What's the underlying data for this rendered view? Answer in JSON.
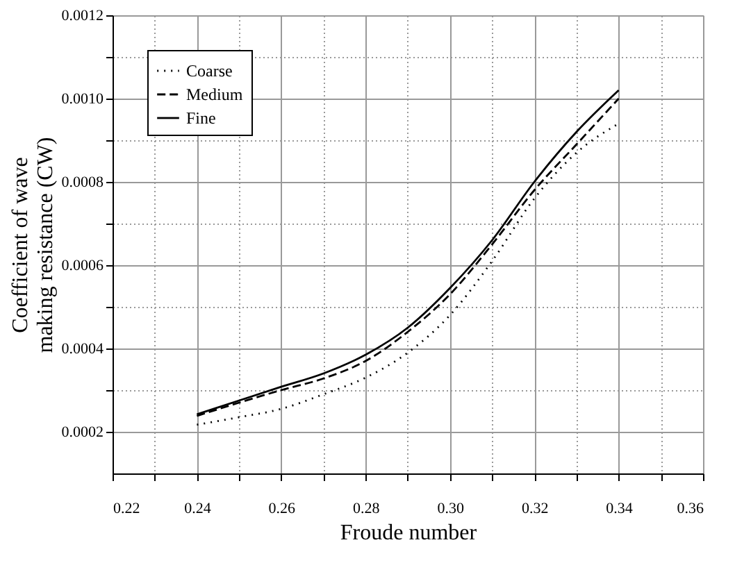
{
  "chart_data": {
    "type": "line",
    "xlabel": "Froude number",
    "ylabel": "Coefficient of wave making resistance (CW)",
    "x": [
      0.24,
      0.25,
      0.26,
      0.27,
      0.28,
      0.29,
      0.3,
      0.31,
      0.32,
      0.33,
      0.34
    ],
    "series": [
      {
        "name": "Coarse",
        "color": "#000000",
        "line_style": "dotted",
        "values": [
          0.000217,
          0.000235,
          0.000255,
          0.00029,
          0.00033,
          0.00039,
          0.00048,
          0.00061,
          0.00076,
          0.00087,
          0.00094
        ]
      },
      {
        "name": "Medium",
        "color": "#000000",
        "line_style": "dashed",
        "values": [
          0.000238,
          0.00027,
          0.0003,
          0.000328,
          0.00037,
          0.00044,
          0.00053,
          0.00065,
          0.00078,
          0.00089,
          0.001
        ]
      },
      {
        "name": "Fine",
        "color": "#000000",
        "line_style": "solid",
        "values": [
          0.000242,
          0.000275,
          0.000308,
          0.00034,
          0.000385,
          0.00045,
          0.000545,
          0.00066,
          0.0008,
          0.00092,
          0.00102
        ]
      }
    ],
    "xlim": [
      0.22,
      0.36
    ],
    "xticks": [
      0.22,
      {
        "value": 0.23,
        "label": null
      },
      0.24,
      {
        "value": 0.25,
        "label": null
      },
      0.26,
      {
        "value": 0.27,
        "label": null
      },
      0.28,
      {
        "value": 0.29,
        "label": null
      },
      {
        "value": 0.3,
        "label": "0.30"
      },
      {
        "value": 0.31,
        "label": null
      },
      0.32,
      {
        "value": 0.33,
        "label": null
      },
      0.34,
      {
        "value": 0.35,
        "label": null
      },
      0.36
    ],
    "ylim": [
      0.0001,
      0.0012
    ],
    "yticks": [
      0.0002,
      {
        "value": 0.0003,
        "label": null
      },
      0.0004,
      {
        "value": 0.0005,
        "label": null
      },
      0.0006,
      {
        "value": 0.0007,
        "label": null
      },
      0.0008,
      {
        "value": 0.0009,
        "label": null
      },
      {
        "value": 0.001,
        "label": "0.0010"
      },
      {
        "value": 0.0011,
        "label": null
      },
      0.0012
    ],
    "grid": true,
    "legend": "top left",
    "marker": "none"
  }
}
